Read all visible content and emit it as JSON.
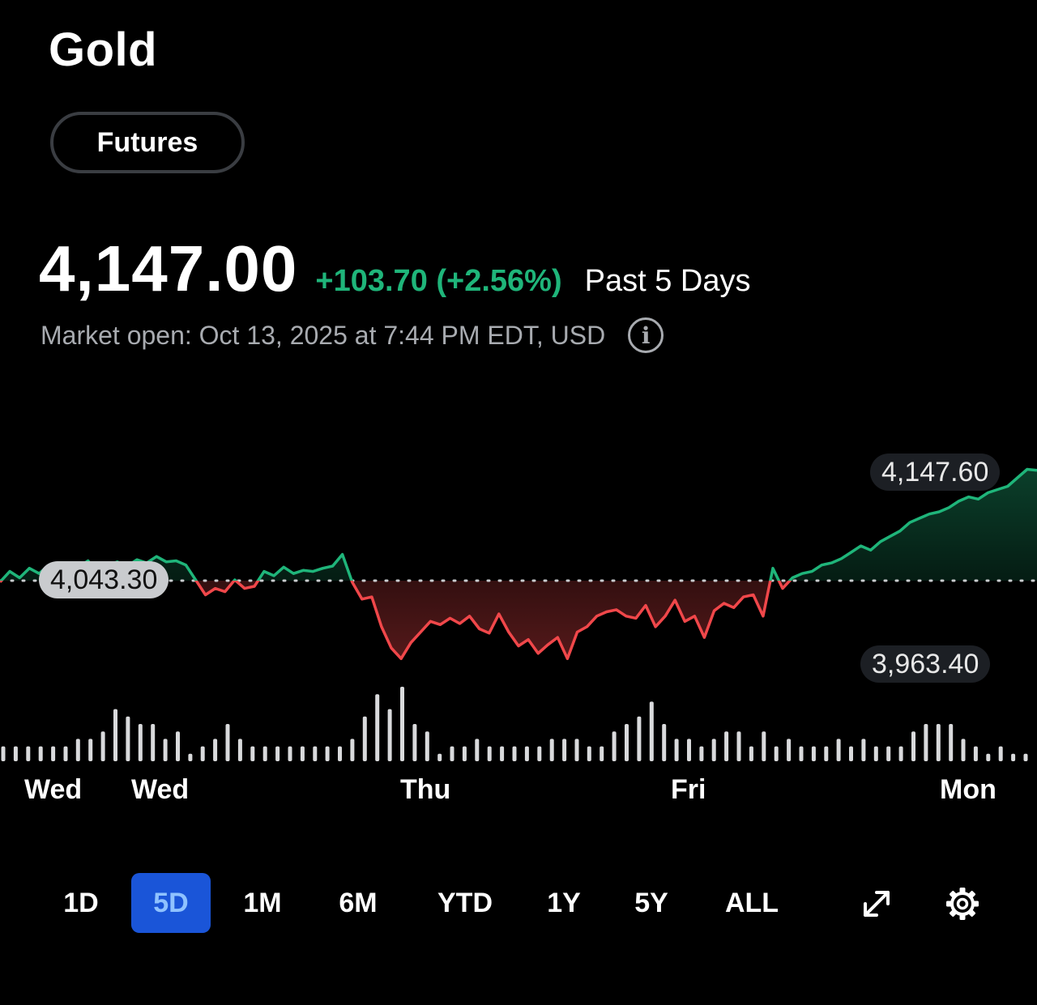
{
  "header": {
    "title": "Gold",
    "badge": "Futures"
  },
  "quote": {
    "price": "4,147.00",
    "change": "+103.70 (+2.56%)",
    "period": "Past 5 Days",
    "meta": "Market open: Oct 13, 2025 at 7:44 PM EDT, USD"
  },
  "colors": {
    "up": "#1fb57a",
    "down": "#f0474a",
    "accent": "#1a55d8",
    "volume": "#d9dadc"
  },
  "icons": {
    "info": "info-icon",
    "expand": "expand-arrows-icon",
    "settings": "gear-icon"
  },
  "chart_data": {
    "type": "area",
    "reference_value": 4043.3,
    "reference_label": "4,043.30",
    "high_label": "4,147.60",
    "low_label": "3,963.40",
    "ylim": [
      3963.4,
      4147.6
    ],
    "x_tick_labels": [
      "Wed",
      "Wed",
      "Thu",
      "Fri",
      "Mon"
    ],
    "series": [
      {
        "values": [
          4042,
          4052,
          4046,
          4055,
          4050,
          4058,
          4054,
          4060,
          4056,
          4062,
          4050,
          4058,
          4061,
          4057,
          4063,
          4060,
          4066,
          4061,
          4062,
          4058,
          4044,
          4030,
          4036,
          4033,
          4044,
          4036,
          4038,
          4052,
          4048,
          4056,
          4050,
          4053,
          4052,
          4055,
          4057,
          4068,
          4042,
          4026,
          4028,
          4000,
          3980,
          3970,
          3985,
          3995,
          4005,
          4002,
          4008,
          4003,
          4010,
          3998,
          3994,
          4012,
          3995,
          3982,
          3988,
          3975,
          3983,
          3990,
          3970,
          3995,
          4000,
          4010,
          4014,
          4016,
          4010,
          4008,
          4020,
          4000,
          4010,
          4025,
          4005,
          4010,
          3990,
          4015,
          4022,
          4018,
          4028,
          4030,
          4010,
          4055,
          4036,
          4046,
          4050,
          4052,
          4058,
          4060,
          4064,
          4070,
          4076,
          4072,
          4080,
          4085,
          4090,
          4098,
          4102,
          4106,
          4108,
          4112,
          4118,
          4122,
          4120,
          4126,
          4129,
          4132,
          4140,
          4148,
          4147
        ]
      }
    ],
    "volume": [
      2,
      2,
      2,
      2,
      2,
      2,
      3,
      3,
      4,
      7,
      6,
      5,
      5,
      3,
      4,
      1,
      2,
      3,
      5,
      3,
      2,
      2,
      2,
      2,
      2,
      2,
      2,
      2,
      3,
      6,
      9,
      7,
      10,
      5,
      4,
      1,
      2,
      2,
      3,
      2,
      2,
      2,
      2,
      2,
      3,
      3,
      3,
      2,
      2,
      4,
      5,
      6,
      8,
      5,
      3,
      3,
      2,
      3,
      4,
      4,
      2,
      4,
      2,
      3,
      2,
      2,
      2,
      3,
      2,
      3,
      2,
      2,
      2,
      4,
      5,
      5,
      5,
      3,
      2,
      1,
      2,
      1,
      1
    ]
  },
  "range_selector": {
    "options": [
      "1D",
      "5D",
      "1M",
      "6M",
      "YTD",
      "1Y",
      "5Y",
      "ALL"
    ],
    "selected": "5D"
  }
}
